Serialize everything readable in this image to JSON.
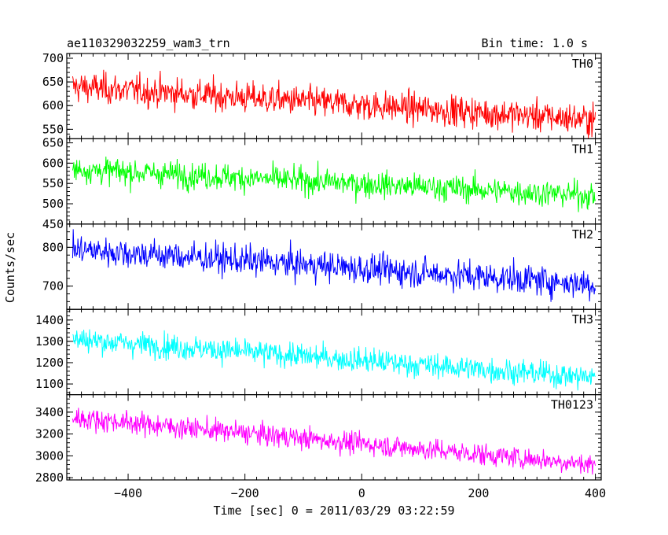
{
  "header": {
    "title": "ae110329032259_wam3_trn",
    "bin_time": "Bin time: 1.0 s"
  },
  "chart_data": {
    "type": "line",
    "xlabel": "Time [sec] 0 = 2011/03/29 03:22:59",
    "ylabel": "Counts/sec",
    "xlim": [
      -505,
      410
    ],
    "x_ticks": [
      -400,
      -200,
      0,
      200,
      400
    ],
    "x_tick_labels": [
      "−400",
      "−200",
      "0",
      "200",
      "400"
    ],
    "x_range": [
      -495,
      400
    ],
    "bin_time": 1.0,
    "series": [
      {
        "name": "TH0",
        "color": "#ff0000",
        "ylim": [
          530,
          710
        ],
        "y_ticks": [
          550,
          600,
          650,
          700
        ],
        "trend": [
          -495,
          640,
          400,
          570
        ],
        "noise": 42
      },
      {
        "name": "TH1",
        "color": "#00ff00",
        "ylim": [
          450,
          660
        ],
        "y_ticks": [
          450,
          500,
          550,
          600,
          650
        ],
        "trend": [
          -495,
          585,
          400,
          520
        ],
        "noise": 42
      },
      {
        "name": "TH2",
        "color": "#0000ff",
        "ylim": [
          640,
          860
        ],
        "y_ticks": [
          700,
          800
        ],
        "trend": [
          -495,
          795,
          400,
          705
        ],
        "noise": 50
      },
      {
        "name": "TH3",
        "color": "#00ffff",
        "ylim": [
          1050,
          1450
        ],
        "y_ticks": [
          1100,
          1200,
          1300,
          1400
        ],
        "trend": [
          -495,
          1310,
          400,
          1130
        ],
        "noise": 75
      },
      {
        "name": "TH0123",
        "color": "#ff00ff",
        "ylim": [
          2780,
          3560
        ],
        "y_ticks": [
          2800,
          3000,
          3200,
          3400
        ],
        "trend": [
          -495,
          3350,
          400,
          2920
        ],
        "noise": 130
      }
    ]
  }
}
